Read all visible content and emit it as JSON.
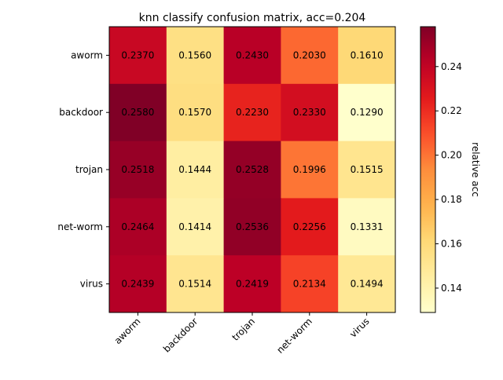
{
  "chart_data": {
    "type": "heatmap",
    "title": "knn classify confusion matrix, acc=0.204",
    "row_labels": [
      "aworm",
      "backdoor",
      "trojan",
      "net-worm",
      "virus"
    ],
    "col_labels": [
      "aworm",
      "backdoor",
      "trojan",
      "net-worm",
      "virus"
    ],
    "values": [
      [
        0.237,
        0.156,
        0.243,
        0.203,
        0.161
      ],
      [
        0.258,
        0.157,
        0.223,
        0.233,
        0.129
      ],
      [
        0.2518,
        0.1444,
        0.2528,
        0.1996,
        0.1515
      ],
      [
        0.2464,
        0.1414,
        0.2536,
        0.2256,
        0.1331
      ],
      [
        0.2439,
        0.1514,
        0.2419,
        0.2134,
        0.1494
      ]
    ],
    "cell_labels": [
      [
        "0.2370",
        "0.1560",
        "0.2430",
        "0.2030",
        "0.1610"
      ],
      [
        "0.2580",
        "0.1570",
        "0.2230",
        "0.2330",
        "0.1290"
      ],
      [
        "0.2518",
        "0.1444",
        "0.2528",
        "0.1996",
        "0.1515"
      ],
      [
        "0.2464",
        "0.1414",
        "0.2536",
        "0.2256",
        "0.1331"
      ],
      [
        "0.2439",
        "0.1514",
        "0.2419",
        "0.2134",
        "0.1494"
      ]
    ],
    "colormap": "YlOrRd",
    "vmin": 0.129,
    "vmax": 0.258,
    "colorbar": {
      "label": "relative acc",
      "ticks": [
        0.14,
        0.16,
        0.18,
        0.2,
        0.22,
        0.24
      ],
      "tick_labels": [
        "0.14",
        "0.16",
        "0.18",
        "0.20",
        "0.22",
        "0.24"
      ]
    },
    "xtick_rotation": "45"
  }
}
